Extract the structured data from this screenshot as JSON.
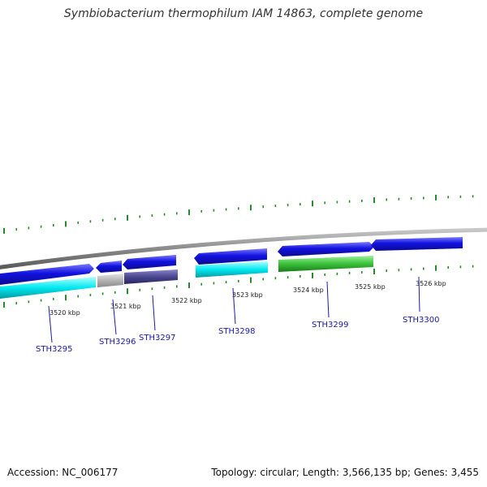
{
  "title": "Symbiobacterium thermophilum IAM 14863, complete genome",
  "footer": {
    "accession_label": "Accession:",
    "accession": "NC_006177",
    "topology_text": "Topology: circular; Length: 3,566,135 bp; Genes: 3,455"
  },
  "colors": {
    "backbone": "#8a8a8a",
    "ticks": "#2a8a2a",
    "gene_label": "#1a1aa8",
    "blue": "#1212e0",
    "cyan": "#00e8f0",
    "grey": "#b4b4b4",
    "slate": "#4a4690",
    "green": "#3ac23a"
  },
  "kbp_labels": [
    "3520 kbp",
    "3521 kbp",
    "3522 kbp",
    "3523 kbp",
    "3524 kbp",
    "3525 kbp",
    "3526 kbp"
  ],
  "genes": [
    {
      "name": "STH3295",
      "cog_color": "cyan"
    },
    {
      "name": "STH3296",
      "cog_color": "grey"
    },
    {
      "name": "STH3297",
      "cog_color": "slate"
    },
    {
      "name": "STH3298",
      "cog_color": "cyan"
    },
    {
      "name": "STH3299",
      "cog_color": "green"
    },
    {
      "name": "STH3300",
      "cog_color": "none"
    }
  ]
}
